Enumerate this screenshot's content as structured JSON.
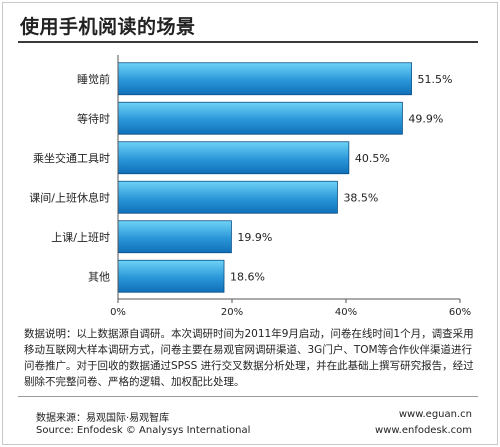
{
  "title": "使用手机阅读的场景",
  "description": "数据说明：以上数据源自调研。本次调研时间为2011年9月启动，问卷在线时间1个月，调查采用移动互联网大样本调研方式，问卷主要在易观官网调研渠道、3G门户、TOM等合作伙伴渠道进行问卷推广。对于回收的数据通过SPSS 进行交叉数据分析处理，并在此基础上撰写研究报告，经过剔除不完整问卷、严格的逻辑、加权配比处理。",
  "footer": {
    "source_cn": "数据来源：易观国际·易观智库",
    "source_en": "Source: Enfodesk © Analysys International",
    "url1": "www.eguan.cn",
    "url2": "www.enfodesk.com"
  },
  "colors": {
    "bar_light": "#6fd3f7",
    "bar_dark": "#0f6fb8",
    "bar_border": "#0a4f86"
  },
  "chart_data": {
    "type": "bar",
    "orientation": "horizontal",
    "categories": [
      "睡觉前",
      "等待时",
      "乘坐交通工具时",
      "课间/上班休息时",
      "上课/上班时",
      "其他"
    ],
    "values": [
      51.5,
      49.9,
      40.5,
      38.5,
      19.9,
      18.6
    ],
    "value_labels": [
      "51.5%",
      "49.9%",
      "40.5%",
      "38.5%",
      "19.9%",
      "18.6%"
    ],
    "xlim": [
      0,
      60
    ],
    "xticks": [
      "0%",
      "20%",
      "40%",
      "60%"
    ],
    "grid": false
  }
}
